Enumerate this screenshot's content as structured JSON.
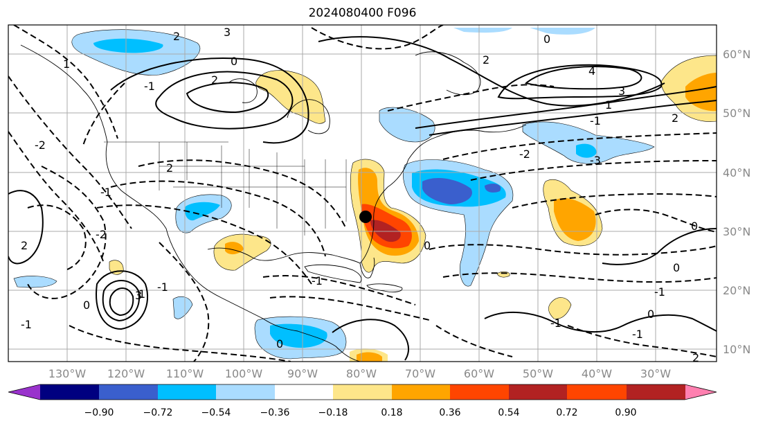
{
  "title": "2024080400 F096",
  "lat_labels": [
    "60°N",
    "50°N",
    "40°N",
    "30°N",
    "20°N",
    "10°N"
  ],
  "lon_labels": [
    "130°W",
    "120°W",
    "110°W",
    "100°W",
    "90°W",
    "80°W",
    "70°W",
    "60°W",
    "50°W",
    "40°W",
    "30°W"
  ],
  "colorbar": {
    "colors": [
      "#9932cc",
      "#000080",
      "#3a5fcd",
      "#00bfff",
      "#aadcff",
      "#ffffff",
      "#fde68a",
      "#ffa500",
      "#ff4500",
      "#b22222",
      "#ff80b0"
    ],
    "ticks": [
      "−0.90",
      "−0.72",
      "−0.54",
      "−0.36",
      "−0.18",
      "0.18",
      "0.36",
      "0.54",
      "0.72",
      "0.90"
    ]
  },
  "contour_labels": [
    "2",
    "3",
    "2",
    "0",
    "-1",
    "2",
    "4",
    "3",
    "1",
    "0",
    "-1",
    "-2",
    "-1",
    "-2",
    "-3",
    "2",
    "-2",
    "-1",
    "1",
    "2",
    "1",
    "3",
    "0",
    "-1",
    "0",
    "0",
    "0",
    "-1",
    "-1",
    "0",
    "-1",
    "0",
    "-1",
    "2",
    "2"
  ],
  "marker": {
    "name": "storm-position"
  }
}
